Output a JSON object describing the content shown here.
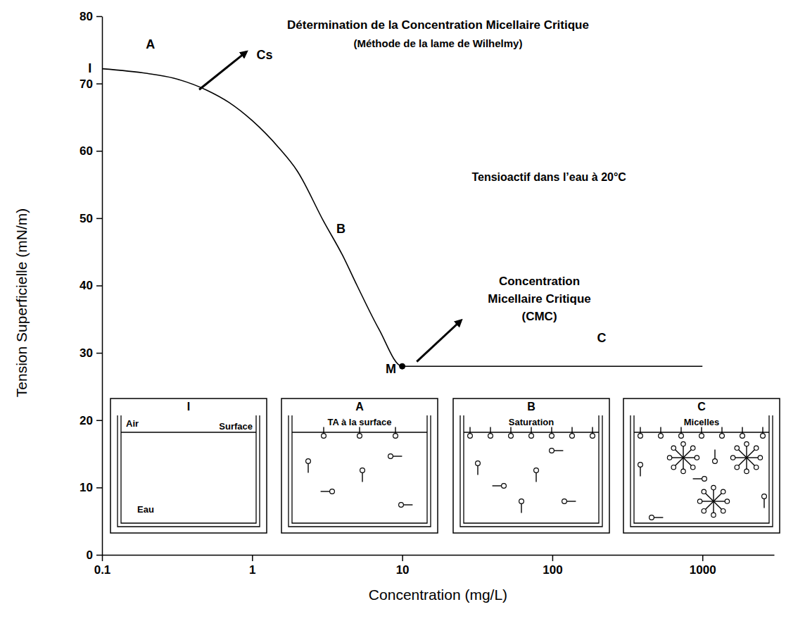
{
  "chart_data": {
    "type": "line",
    "title": "Détermination de la Concentration Micellaire Critique",
    "subtitle": "(Méthode de la lame de Wilhelmy)",
    "x_label": "Concentration (mg/L)",
    "y_label": "Tension Superficielle (mN/m)",
    "log": "x",
    "grid": false,
    "color": "#000000",
    "x": [
      0.1,
      0.2,
      0.3,
      0.5,
      0.7,
      1,
      1.5,
      2,
      3,
      4,
      5,
      7,
      10,
      100,
      1000
    ],
    "values": [
      72.2,
      71.5,
      70.8,
      69.0,
      67.2,
      64.5,
      60.5,
      57.0,
      49.5,
      44.5,
      40.0,
      33.5,
      28.0,
      28.0,
      28.0
    ],
    "xlim": [
      0.1,
      3000
    ],
    "xticks": [
      0.1,
      1,
      10,
      100,
      1000
    ],
    "ylim": [
      0,
      80
    ],
    "yticks": [
      0,
      10,
      20,
      30,
      40,
      50,
      60,
      70,
      80
    ],
    "annotations": [
      {
        "text": "I",
        "x": 0.083,
        "y": 72.3
      },
      {
        "text": "A",
        "x": 0.21,
        "y": 75.8
      },
      {
        "text": "Cs",
        "x": 1.21,
        "y": 74.3,
        "arrow_from": [
          0.444,
          69.1
        ],
        "arrow_to": [
          0.914,
          74.7
        ]
      },
      {
        "text": "B",
        "x": 3.9,
        "y": 48.4
      },
      {
        "text": "M",
        "x": 10,
        "y": 28,
        "marker": "circle"
      },
      {
        "text": [
          "Concentration",
          "Micellaire Critique",
          "(CMC)"
        ],
        "x": 82,
        "y": 40.6,
        "arrow_from": [
          12.5,
          28.7
        ],
        "arrow_to": [
          24.6,
          34.8
        ]
      },
      {
        "text": "C",
        "x": 213,
        "y": 32.2
      },
      {
        "text": "Tensioactif dans l’eau à 20°C",
        "x": 95,
        "y": 56.1
      }
    ],
    "insets": [
      {
        "label": "I",
        "texts": [
          "Air",
          "Surface",
          "Eau"
        ]
      },
      {
        "label": "A",
        "title": "TA à la surface"
      },
      {
        "label": "B",
        "title": "Saturation"
      },
      {
        "label": "C",
        "title": "Micelles"
      }
    ]
  }
}
